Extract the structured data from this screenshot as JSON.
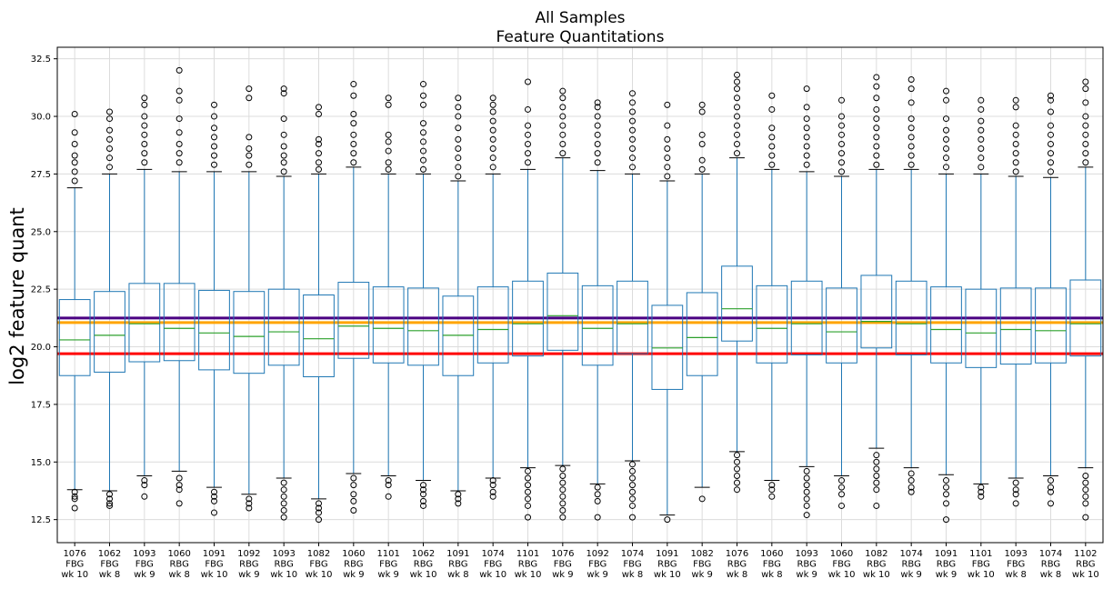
{
  "chart_data": {
    "type": "box",
    "title": [
      "All Samples",
      "Feature Quantitations"
    ],
    "xlabel": "",
    "ylabel": "log2 feature quant",
    "ylim": [
      11.5,
      33.0
    ],
    "yticks": [
      12.5,
      15.0,
      17.5,
      20.0,
      22.5,
      25.0,
      27.5,
      30.0,
      32.5
    ],
    "grid": true,
    "categories": [
      [
        "1076",
        "FBG",
        "wk 10"
      ],
      [
        "1062",
        "FBG",
        "wk 8"
      ],
      [
        "1093",
        "FBG",
        "wk 9"
      ],
      [
        "1060",
        "RBG",
        "wk 8"
      ],
      [
        "1091",
        "FBG",
        "wk 10"
      ],
      [
        "1092",
        "RBG",
        "wk 9"
      ],
      [
        "1093",
        "RBG",
        "wk 10"
      ],
      [
        "1082",
        "FBG",
        "wk 10"
      ],
      [
        "1060",
        "RBG",
        "wk 9"
      ],
      [
        "1101",
        "FBG",
        "wk 9"
      ],
      [
        "1062",
        "RBG",
        "wk 10"
      ],
      [
        "1091",
        "RBG",
        "wk 8"
      ],
      [
        "1074",
        "FBG",
        "wk 10"
      ],
      [
        "1101",
        "RBG",
        "wk 10"
      ],
      [
        "1076",
        "FBG",
        "wk 9"
      ],
      [
        "1092",
        "FBG",
        "wk 9"
      ],
      [
        "1074",
        "FBG",
        "wk 8"
      ],
      [
        "1091",
        "RBG",
        "wk 10"
      ],
      [
        "1082",
        "FBG",
        "wk 9"
      ],
      [
        "1076",
        "RBG",
        "wk 8"
      ],
      [
        "1060",
        "FBG",
        "wk 8"
      ],
      [
        "1093",
        "RBG",
        "wk 9"
      ],
      [
        "1060",
        "FBG",
        "wk 10"
      ],
      [
        "1082",
        "RBG",
        "wk 10"
      ],
      [
        "1074",
        "RBG",
        "wk 9"
      ],
      [
        "1091",
        "RBG",
        "wk 9"
      ],
      [
        "1101",
        "FBG",
        "wk 10"
      ],
      [
        "1093",
        "FBG",
        "wk 8"
      ],
      [
        "1074",
        "RBG",
        "wk 8"
      ],
      [
        "1102",
        "RBG",
        "wk 10"
      ]
    ],
    "boxes": [
      {
        "whislo": 13.8,
        "q1": 18.75,
        "med": 20.3,
        "q3": 22.05,
        "whishi": 26.9,
        "flier_lo": [
          13.7,
          13.5,
          13.4,
          13.0
        ],
        "flier_hi": [
          27.2,
          27.6,
          28.0,
          28.3,
          28.8,
          29.3,
          30.1
        ]
      },
      {
        "whislo": 13.75,
        "q1": 18.9,
        "med": 20.5,
        "q3": 22.4,
        "whishi": 27.5,
        "flier_lo": [
          13.6,
          13.4,
          13.2,
          13.1
        ],
        "flier_hi": [
          27.8,
          28.2,
          28.6,
          29.0,
          29.4,
          29.9,
          30.2
        ]
      },
      {
        "whislo": 14.4,
        "q1": 19.35,
        "med": 21.0,
        "q3": 22.75,
        "whishi": 27.7,
        "flier_lo": [
          14.2,
          14.0,
          13.5
        ],
        "flier_hi": [
          28.0,
          28.4,
          28.8,
          29.2,
          29.6,
          30.0,
          30.5,
          30.8
        ]
      },
      {
        "whislo": 14.6,
        "q1": 19.4,
        "med": 20.8,
        "q3": 22.75,
        "whishi": 27.6,
        "flier_lo": [
          14.3,
          14.0,
          13.8,
          13.2
        ],
        "flier_hi": [
          28.0,
          28.4,
          28.8,
          29.3,
          29.9,
          30.7,
          31.1,
          32.0
        ]
      },
      {
        "whislo": 13.9,
        "q1": 19.0,
        "med": 20.6,
        "q3": 22.45,
        "whishi": 27.6,
        "flier_lo": [
          13.7,
          13.5,
          13.3,
          12.8
        ],
        "flier_hi": [
          27.9,
          28.3,
          28.7,
          29.1,
          29.5,
          30.0,
          30.5
        ]
      },
      {
        "whislo": 13.6,
        "q1": 18.85,
        "med": 20.45,
        "q3": 22.4,
        "whishi": 27.6,
        "flier_lo": [
          13.4,
          13.2,
          13.0
        ],
        "flier_hi": [
          27.9,
          28.3,
          28.6,
          29.1,
          30.8,
          31.2
        ]
      },
      {
        "whislo": 14.3,
        "q1": 19.2,
        "med": 20.65,
        "q3": 22.5,
        "whishi": 27.4,
        "flier_lo": [
          14.1,
          13.8,
          13.5,
          13.2,
          12.9,
          12.6
        ],
        "flier_hi": [
          27.6,
          28.0,
          28.3,
          28.7,
          29.2,
          29.9,
          31.0,
          31.2
        ]
      },
      {
        "whislo": 13.4,
        "q1": 18.7,
        "med": 20.35,
        "q3": 22.25,
        "whishi": 27.5,
        "flier_lo": [
          13.2,
          13.0,
          12.8,
          12.5
        ],
        "flier_hi": [
          27.7,
          28.0,
          28.4,
          28.8,
          29.0,
          30.1,
          30.4
        ]
      },
      {
        "whislo": 14.5,
        "q1": 19.5,
        "med": 20.9,
        "q3": 22.8,
        "whishi": 27.8,
        "flier_lo": [
          14.3,
          14.0,
          13.6,
          13.3,
          12.9
        ],
        "flier_hi": [
          28.0,
          28.4,
          28.8,
          29.2,
          29.7,
          30.1,
          30.9,
          31.4
        ]
      },
      {
        "whislo": 14.4,
        "q1": 19.3,
        "med": 20.8,
        "q3": 22.6,
        "whishi": 27.5,
        "flier_lo": [
          14.2,
          14.0,
          13.5
        ],
        "flier_hi": [
          27.7,
          28.0,
          28.5,
          28.9,
          29.2,
          30.5,
          30.8
        ]
      },
      {
        "whislo": 14.2,
        "q1": 19.2,
        "med": 20.7,
        "q3": 22.55,
        "whishi": 27.5,
        "flier_lo": [
          14.0,
          13.8,
          13.6,
          13.3,
          13.1
        ],
        "flier_hi": [
          27.7,
          28.1,
          28.5,
          28.9,
          29.3,
          29.7,
          30.5,
          30.9,
          31.4
        ]
      },
      {
        "whislo": 13.75,
        "q1": 18.75,
        "med": 20.5,
        "q3": 22.2,
        "whishi": 27.2,
        "flier_lo": [
          13.6,
          13.4,
          13.2
        ],
        "flier_hi": [
          27.4,
          27.8,
          28.2,
          28.6,
          29.0,
          29.5,
          30.0,
          30.4,
          30.8
        ]
      },
      {
        "whislo": 14.3,
        "q1": 19.3,
        "med": 20.75,
        "q3": 22.6,
        "whishi": 27.5,
        "flier_lo": [
          14.2,
          14.0,
          13.7,
          13.5
        ],
        "flier_hi": [
          27.8,
          28.2,
          28.6,
          29.0,
          29.4,
          29.8,
          30.2,
          30.5,
          30.8
        ]
      },
      {
        "whislo": 14.75,
        "q1": 19.6,
        "med": 21.0,
        "q3": 22.85,
        "whishi": 27.7,
        "flier_lo": [
          14.6,
          14.3,
          14.0,
          13.7,
          13.4,
          13.1,
          12.6
        ],
        "flier_hi": [
          28.0,
          28.4,
          28.8,
          29.2,
          29.6,
          30.3,
          31.5
        ]
      },
      {
        "whislo": 14.85,
        "q1": 19.85,
        "med": 21.35,
        "q3": 23.2,
        "whishi": 28.2,
        "flier_lo": [
          14.7,
          14.4,
          14.1,
          13.8,
          13.5,
          13.2,
          12.9,
          12.6
        ],
        "flier_hi": [
          28.4,
          28.8,
          29.2,
          29.6,
          30.0,
          30.4,
          30.8,
          31.1
        ]
      },
      {
        "whislo": 14.05,
        "q1": 19.2,
        "med": 20.8,
        "q3": 22.65,
        "whishi": 27.65,
        "flier_lo": [
          13.9,
          13.6,
          13.3,
          12.6
        ],
        "flier_hi": [
          28.0,
          28.4,
          28.8,
          29.2,
          29.6,
          30.0,
          30.4,
          30.6
        ]
      },
      {
        "whislo": 15.05,
        "q1": 19.7,
        "med": 21.0,
        "q3": 22.85,
        "whishi": 27.5,
        "flier_lo": [
          14.9,
          14.6,
          14.3,
          14.0,
          13.7,
          13.4,
          13.1,
          12.6
        ],
        "flier_hi": [
          27.8,
          28.2,
          28.6,
          29.0,
          29.4,
          29.8,
          30.2,
          30.6,
          31.0
        ]
      },
      {
        "whislo": 12.7,
        "q1": 18.15,
        "med": 19.95,
        "q3": 21.8,
        "whishi": 27.2,
        "flier_lo": [
          12.5
        ],
        "flier_hi": [
          27.4,
          27.8,
          28.2,
          28.6,
          29.0,
          29.6,
          30.5
        ]
      },
      {
        "whislo": 13.9,
        "q1": 18.75,
        "med": 20.4,
        "q3": 22.35,
        "whishi": 27.5,
        "flier_lo": [
          13.4
        ],
        "flier_hi": [
          27.7,
          28.1,
          28.8,
          29.2,
          30.2,
          30.5
        ]
      },
      {
        "whislo": 15.45,
        "q1": 20.25,
        "med": 21.65,
        "q3": 23.5,
        "whishi": 28.2,
        "flier_lo": [
          15.3,
          15.0,
          14.7,
          14.4,
          14.1,
          13.8
        ],
        "flier_hi": [
          28.4,
          28.8,
          29.2,
          29.6,
          30.0,
          30.4,
          30.8,
          31.2,
          31.5,
          31.8
        ]
      },
      {
        "whislo": 14.2,
        "q1": 19.3,
        "med": 20.8,
        "q3": 22.65,
        "whishi": 27.7,
        "flier_lo": [
          14.0,
          13.8,
          13.5
        ],
        "flier_hi": [
          27.9,
          28.3,
          28.7,
          29.1,
          29.5,
          30.3,
          30.9
        ]
      },
      {
        "whislo": 14.8,
        "q1": 19.65,
        "med": 21.0,
        "q3": 22.85,
        "whishi": 27.6,
        "flier_lo": [
          14.6,
          14.3,
          14.0,
          13.7,
          13.4,
          13.1,
          12.7
        ],
        "flier_hi": [
          27.9,
          28.3,
          28.7,
          29.1,
          29.5,
          29.9,
          30.4,
          31.2
        ]
      },
      {
        "whislo": 14.4,
        "q1": 19.3,
        "med": 20.65,
        "q3": 22.55,
        "whishi": 27.4,
        "flier_lo": [
          14.2,
          13.9,
          13.6,
          13.1
        ],
        "flier_hi": [
          27.6,
          28.0,
          28.4,
          28.8,
          29.2,
          29.6,
          30.0,
          30.7
        ]
      },
      {
        "whislo": 15.6,
        "q1": 19.95,
        "med": 21.1,
        "q3": 23.1,
        "whishi": 27.7,
        "flier_lo": [
          15.3,
          15.0,
          14.7,
          14.4,
          14.1,
          13.8,
          13.1
        ],
        "flier_hi": [
          27.9,
          28.3,
          28.7,
          29.1,
          29.5,
          29.9,
          30.3,
          30.8,
          31.3,
          31.7
        ]
      },
      {
        "whislo": 14.75,
        "q1": 19.65,
        "med": 21.0,
        "q3": 22.85,
        "whishi": 27.7,
        "flier_lo": [
          14.5,
          14.2,
          13.9,
          13.7
        ],
        "flier_hi": [
          27.9,
          28.3,
          28.7,
          29.1,
          29.5,
          29.9,
          30.6,
          31.2,
          31.6
        ]
      },
      {
        "whislo": 14.45,
        "q1": 19.3,
        "med": 20.75,
        "q3": 22.6,
        "whishi": 27.5,
        "flier_lo": [
          14.2,
          13.9,
          13.6,
          13.2,
          12.5
        ],
        "flier_hi": [
          27.8,
          28.2,
          28.6,
          29.0,
          29.4,
          29.9,
          30.7,
          31.1
        ]
      },
      {
        "whislo": 14.05,
        "q1": 19.1,
        "med": 20.6,
        "q3": 22.5,
        "whishi": 27.5,
        "flier_lo": [
          13.9,
          13.7,
          13.5
        ],
        "flier_hi": [
          27.8,
          28.2,
          28.6,
          29.0,
          29.4,
          29.8,
          30.3,
          30.7
        ]
      },
      {
        "whislo": 14.3,
        "q1": 19.25,
        "med": 20.75,
        "q3": 22.55,
        "whishi": 27.4,
        "flier_lo": [
          14.1,
          13.8,
          13.6,
          13.2
        ],
        "flier_hi": [
          27.6,
          28.0,
          28.4,
          28.8,
          29.2,
          29.6,
          30.4,
          30.7
        ]
      },
      {
        "whislo": 14.4,
        "q1": 19.3,
        "med": 20.7,
        "q3": 22.55,
        "whishi": 27.35,
        "flier_lo": [
          14.2,
          13.9,
          13.7,
          13.2
        ],
        "flier_hi": [
          27.6,
          28.0,
          28.4,
          28.8,
          29.2,
          29.6,
          30.2,
          30.7,
          30.9
        ]
      },
      {
        "whislo": 14.75,
        "q1": 19.6,
        "med": 21.0,
        "q3": 22.9,
        "whishi": 27.8,
        "flier_lo": [
          14.4,
          14.1,
          13.8,
          13.5,
          13.2,
          12.6
        ],
        "flier_hi": [
          28.0,
          28.4,
          28.8,
          29.2,
          29.6,
          30.0,
          30.6,
          31.2,
          31.5
        ]
      }
    ],
    "reference_lines": [
      {
        "y": 21.25,
        "color": "#4b0082"
      },
      {
        "y": 21.05,
        "color": "#ffa500"
      },
      {
        "y": 19.7,
        "color": "#ff0000"
      }
    ],
    "colors": {
      "box": "#1f77b4",
      "median": "#2ca02c",
      "grid": "#dcdcdc",
      "flier": "#000000"
    }
  }
}
